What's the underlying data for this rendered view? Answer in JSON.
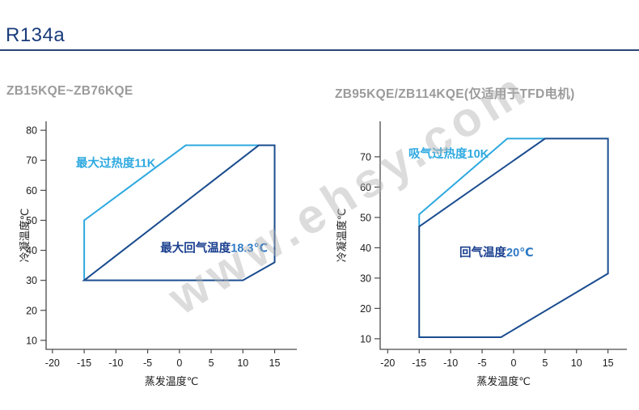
{
  "header": {
    "title": "R134a"
  },
  "watermark": {
    "text": "www.ehsy.com"
  },
  "colors": {
    "accent_navy": "#1a3c7b",
    "light_blue": "#2ea9e0",
    "dark_blue": "#1b4d8f",
    "label_navy": "#1a3f8f",
    "label_value_blue": "#2e7ac5",
    "title_gray": "#9b9b9b",
    "axis": "#4a4a4a",
    "tick_text": "#1c1c1c"
  },
  "chart_data": [
    {
      "type": "line",
      "title": "ZB15KQE~ZB76KQE",
      "xlabel": "蒸发温度℃",
      "ylabel": "冷凝温度℃",
      "x_ticks": [
        -20,
        -15,
        -10,
        -5,
        0,
        5,
        10,
        15
      ],
      "y_ticks": [
        10,
        20,
        30,
        40,
        50,
        60,
        70,
        80
      ],
      "xlim": [
        -21,
        18.5
      ],
      "ylim": [
        7,
        83
      ],
      "grid": false,
      "legend": "none",
      "series": [
        {
          "name": "最大过热度11K",
          "role": "max-superheat-limit",
          "color_key": "light_blue",
          "closed": false,
          "points": [
            [
              -15,
              30
            ],
            [
              -15,
              50
            ],
            [
              1,
              75
            ],
            [
              12.5,
              75
            ]
          ]
        },
        {
          "name": "最大回气温度18.3℃",
          "role": "operating-envelope",
          "color_key": "dark_blue",
          "closed": true,
          "points": [
            [
              -15,
              30
            ],
            [
              10,
              30
            ],
            [
              15,
              36
            ],
            [
              15,
              75
            ],
            [
              12.5,
              75
            ]
          ]
        }
      ],
      "annotations": [
        {
          "x": -16.3,
          "y": 67.8,
          "parts": [
            {
              "text": "最大过热度11K",
              "color_key": "light_blue"
            }
          ]
        },
        {
          "x": -3,
          "y": 39.5,
          "parts": [
            {
              "text": "最大回气温度",
              "color_key": "label_navy"
            },
            {
              "text": "18.3℃",
              "color_key": "label_value_blue"
            }
          ]
        }
      ]
    },
    {
      "type": "line",
      "title": "ZB95KQE/ZB114KQE(仅适用于TFD电机)",
      "xlabel": "蒸发温度℃",
      "ylabel": "冷凝温度℃",
      "x_ticks": [
        -20,
        -15,
        -10,
        -5,
        0,
        5,
        10,
        15
      ],
      "y_ticks": [
        10,
        20,
        30,
        40,
        50,
        60,
        70
      ],
      "xlim": [
        -21.2,
        18
      ],
      "ylim": [
        6.5,
        81.7
      ],
      "grid": false,
      "legend": "none",
      "series": [
        {
          "name": "吸气过热度10K",
          "role": "suction-superheat-limit",
          "color_key": "light_blue",
          "closed": false,
          "points": [
            [
              -15,
              47
            ],
            [
              -15,
              51
            ],
            [
              -1,
              76
            ],
            [
              5,
              76
            ]
          ]
        },
        {
          "name": "回气温度20℃",
          "role": "operating-envelope",
          "color_key": "dark_blue",
          "closed": true,
          "points": [
            [
              -15,
              47
            ],
            [
              -15,
              10.5
            ],
            [
              -2,
              10.5
            ],
            [
              15,
              31.5
            ],
            [
              15,
              76
            ],
            [
              5,
              76
            ]
          ]
        }
      ],
      "annotations": [
        {
          "x": -16.7,
          "y": 69.7,
          "parts": [
            {
              "text": "吸气过热度10K",
              "color_key": "light_blue"
            }
          ]
        },
        {
          "x": -8.6,
          "y": 37.2,
          "parts": [
            {
              "text": "回气温度",
              "color_key": "label_navy"
            },
            {
              "text": "20℃",
              "color_key": "label_value_blue"
            }
          ]
        }
      ]
    }
  ]
}
